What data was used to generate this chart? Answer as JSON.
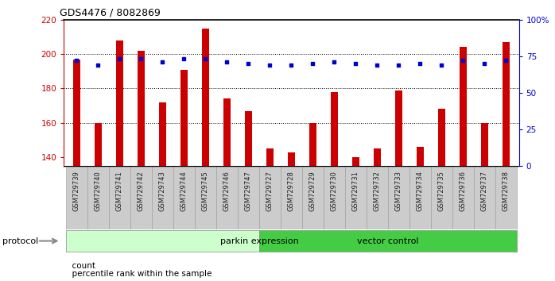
{
  "title": "GDS4476 / 8082869",
  "samples": [
    "GSM729739",
    "GSM729740",
    "GSM729741",
    "GSM729742",
    "GSM729743",
    "GSM729744",
    "GSM729745",
    "GSM729746",
    "GSM729747",
    "GSM729727",
    "GSM729728",
    "GSM729729",
    "GSM729730",
    "GSM729731",
    "GSM729732",
    "GSM729733",
    "GSM729734",
    "GSM729735",
    "GSM729736",
    "GSM729737",
    "GSM729738"
  ],
  "counts": [
    197,
    160,
    208,
    202,
    172,
    191,
    215,
    174,
    167,
    145,
    143,
    160,
    178,
    140,
    145,
    179,
    146,
    168,
    204,
    160,
    207
  ],
  "percentiles": [
    72,
    69,
    73,
    73,
    71,
    73,
    73,
    71,
    70,
    69,
    69,
    70,
    71,
    70,
    69,
    69,
    70,
    69,
    72,
    70,
    72
  ],
  "bar_color": "#cc0000",
  "dot_color": "#0000cc",
  "ylim_left": [
    135,
    220
  ],
  "ylim_right": [
    0,
    100
  ],
  "yticks_left": [
    140,
    160,
    180,
    200,
    220
  ],
  "yticks_right": [
    0,
    25,
    50,
    75,
    100
  ],
  "yticklabels_right": [
    "0",
    "25",
    "50",
    "75",
    "100%"
  ],
  "group1_label": "parkin expression",
  "group2_label": "vector control",
  "group1_count": 9,
  "group2_count": 12,
  "legend_count_label": "count",
  "legend_pct_label": "percentile rank within the sample",
  "protocol_label": "protocol",
  "group1_color": "#ccffcc",
  "group2_color": "#44cc44",
  "background_color": "#ffffff",
  "tick_area_bg": "#cccccc",
  "bar_width": 0.35
}
